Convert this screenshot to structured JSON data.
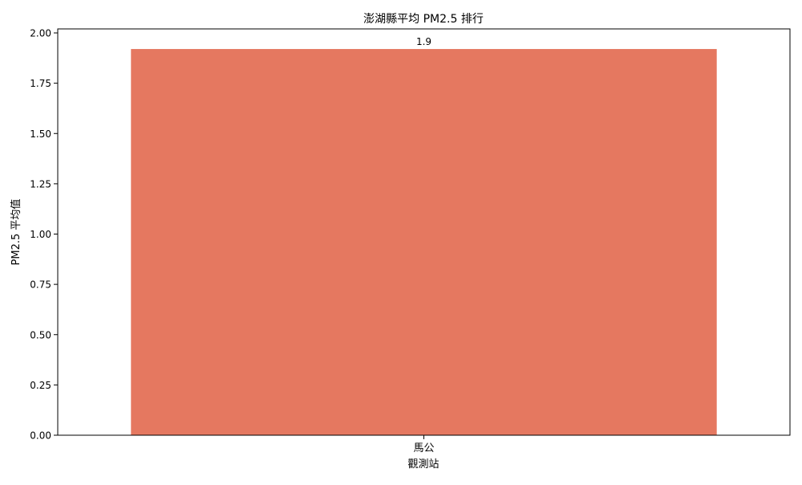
{
  "chart_data": {
    "type": "bar",
    "title": "澎湖縣平均 PM2.5 排行",
    "xlabel": "觀測站",
    "ylabel": "PM2.5 平均值",
    "categories": [
      "馬公"
    ],
    "values": [
      1.92
    ],
    "data_labels": [
      "1.9"
    ],
    "ylim": [
      0,
      2.02
    ],
    "yticks": [
      0,
      0.25,
      0.5,
      0.75,
      1.0,
      1.25,
      1.5,
      1.75,
      2.0
    ],
    "ytick_labels": [
      "0.00",
      "0.25",
      "0.50",
      "0.75",
      "1.00",
      "1.25",
      "1.50",
      "1.75",
      "2.00"
    ],
    "grid": false,
    "legend": false,
    "colors": {
      "bar": "#e57860",
      "axis": "#000000",
      "text": "#000000"
    }
  }
}
